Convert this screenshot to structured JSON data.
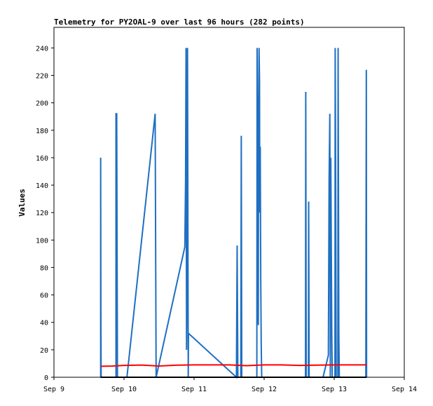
{
  "chart_data": {
    "type": "line",
    "title": "Telemetry for PY2OAL-9 over last 96 hours (282 points)",
    "xlabel": "",
    "ylabel": "Values",
    "x_ticks": [
      "Sep 9",
      "Sep 10",
      "Sep 11",
      "Sep 12",
      "Sep 13",
      "Sep 14"
    ],
    "xlim": [
      "Sep 9 00:00",
      "Sep 14 00:00"
    ],
    "y_ticks": [
      0,
      20,
      40,
      60,
      80,
      100,
      120,
      140,
      160,
      180,
      200,
      220,
      240
    ],
    "ylim": [
      0,
      255
    ],
    "grid": false,
    "legend": "none",
    "series": [
      {
        "color": "#1f6fc2",
        "points": [
          [
            "Sep 9 16:00",
            0
          ],
          [
            "Sep 9 16:00",
            160
          ],
          [
            "Sep 9 16:05",
            40
          ],
          [
            "Sep 9 16:10",
            0
          ],
          [
            "Sep 9 21:15",
            0
          ],
          [
            "Sep 9 21:15",
            192
          ],
          [
            "Sep 9 21:30",
            192
          ],
          [
            "Sep 9 21:45",
            0
          ],
          [
            "Sep 10 01:00",
            0
          ],
          [
            "Sep 10 10:40",
            192
          ],
          [
            "Sep 10 11:00",
            0
          ],
          [
            "Sep 10 20:50",
            95
          ],
          [
            "Sep 10 21:05",
            144
          ],
          [
            "Sep 10 21:15",
            240
          ],
          [
            "Sep 10 21:25",
            20
          ],
          [
            "Sep 10 21:35",
            92
          ],
          [
            "Sep 10 21:45",
            240
          ],
          [
            "Sep 10 22:00",
            0
          ],
          [
            "Sep 10 22:05",
            32
          ],
          [
            "Sep 11 14:30",
            0
          ],
          [
            "Sep 11 14:45",
            96
          ],
          [
            "Sep 11 15:00",
            0
          ],
          [
            "Sep 11 16:00",
            0
          ],
          [
            "Sep 11 16:10",
            176
          ],
          [
            "Sep 11 16:20",
            0
          ],
          [
            "Sep 11 21:30",
            0
          ],
          [
            "Sep 11 21:35",
            240
          ],
          [
            "Sep 11 21:45",
            145
          ],
          [
            "Sep 11 21:50",
            112
          ],
          [
            "Sep 11 22:00",
            38
          ],
          [
            "Sep 11 22:05",
            187
          ],
          [
            "Sep 11 22:15",
            240
          ],
          [
            "Sep 11 22:25",
            216
          ],
          [
            "Sep 11 22:30",
            120
          ],
          [
            "Sep 11 22:40",
            168
          ],
          [
            "Sep 11 22:50",
            72
          ],
          [
            "Sep 11 23:00",
            24
          ],
          [
            "Sep 11 23:10",
            0
          ],
          [
            "Sep 12 14:10",
            0
          ],
          [
            "Sep 12 14:15",
            208
          ],
          [
            "Sep 12 14:25",
            0
          ],
          [
            "Sep 12 15:10",
            0
          ],
          [
            "Sep 12 15:15",
            128
          ],
          [
            "Sep 12 15:25",
            0
          ],
          [
            "Sep 12 20:10",
            0
          ],
          [
            "Sep 12 22:00",
            16
          ],
          [
            "Sep 12 22:15",
            144
          ],
          [
            "Sep 12 22:30",
            192
          ],
          [
            "Sep 12 22:40",
            0
          ],
          [
            "Sep 12 22:50",
            160
          ],
          [
            "Sep 12 23:00",
            96
          ],
          [
            "Sep 12 23:10",
            32
          ],
          [
            "Sep 12 23:20",
            0
          ],
          [
            "Sep 13 00:15",
            0
          ],
          [
            "Sep 13 00:20",
            240
          ],
          [
            "Sep 13 00:30",
            144
          ],
          [
            "Sep 13 00:40",
            0
          ],
          [
            "Sep 13 01:15",
            0
          ],
          [
            "Sep 13 01:20",
            240
          ],
          [
            "Sep 13 01:35",
            32
          ],
          [
            "Sep 13 01:45",
            0
          ],
          [
            "Sep 13 10:50",
            0
          ],
          [
            "Sep 13 10:55",
            112
          ],
          [
            "Sep 13 11:00",
            224
          ],
          [
            "Sep 13 11:05",
            0
          ]
        ]
      },
      {
        "color": "#ff0000",
        "points": [
          [
            "Sep 9 16:00",
            8
          ],
          [
            "Sep 9 20:00",
            8.2
          ],
          [
            "Sep 10 00:00",
            8.6
          ],
          [
            "Sep 10 06:00",
            8.9
          ],
          [
            "Sep 10 12:00",
            8.2
          ],
          [
            "Sep 10 18:00",
            8.8
          ],
          [
            "Sep 11 00:00",
            9.0
          ],
          [
            "Sep 11 12:00",
            9.0
          ],
          [
            "Sep 11 18:00",
            8.4
          ],
          [
            "Sep 12 00:00",
            9.0
          ],
          [
            "Sep 12 06:00",
            9.0
          ],
          [
            "Sep 12 12:00",
            8.6
          ],
          [
            "Sep 12 18:00",
            8.8
          ],
          [
            "Sep 13 00:00",
            9.0
          ],
          [
            "Sep 13 11:05",
            9.0
          ]
        ]
      },
      {
        "color": "#000000",
        "points": [
          [
            "Sep 9 16:00",
            0
          ],
          [
            "Sep 13 11:05",
            0
          ]
        ]
      }
    ]
  }
}
